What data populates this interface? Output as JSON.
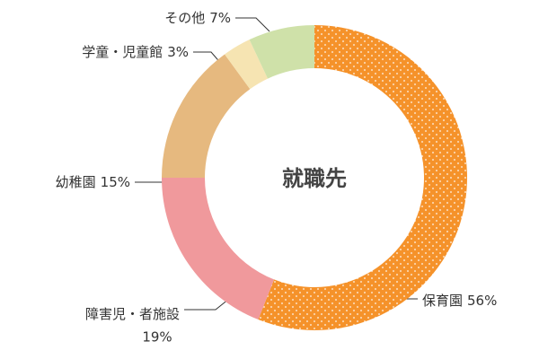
{
  "chart_data": {
    "type": "donut",
    "center_label": "就職先",
    "categories": [
      "保育園",
      "障害児・者施設",
      "幼稚園",
      "学童・児童館",
      "その他"
    ],
    "values": [
      56,
      19,
      15,
      3,
      7
    ],
    "value_labels": [
      "56%",
      "19%",
      "15%",
      "3%",
      "7%"
    ],
    "colors": [
      "#f5922a",
      "#f0999c",
      "#e6b97f",
      "#f6e4b2",
      "#cfe1a9"
    ],
    "dotted": [
      true,
      false,
      false,
      false,
      false
    ]
  }
}
